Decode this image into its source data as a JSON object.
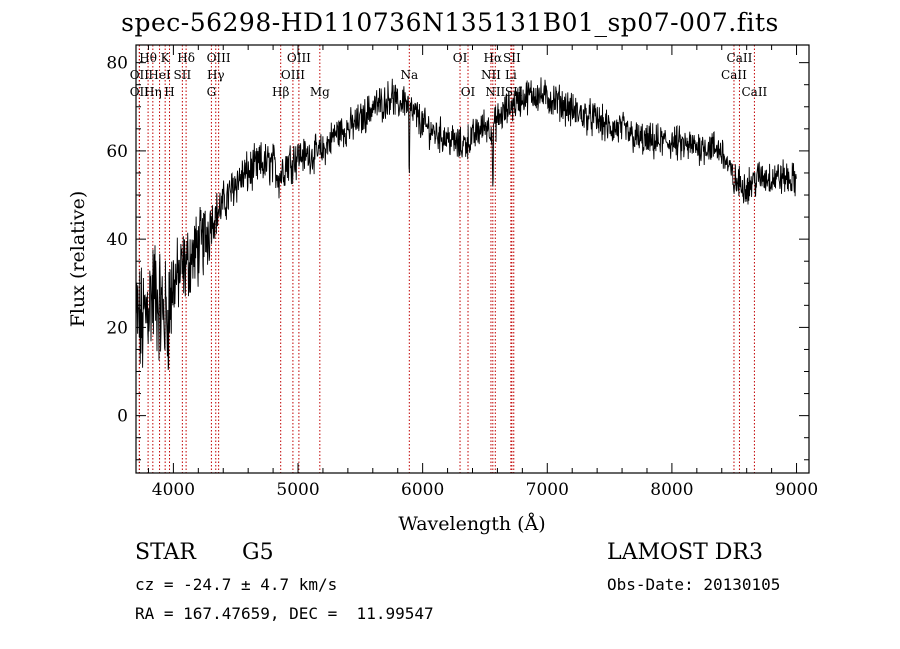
{
  "title": "spec-56298-HD110736N135131B01_sp07-007.fits",
  "info": {
    "class_label": "STAR",
    "subclass": "G5",
    "survey": "LAMOST DR3",
    "cz": "cz = -24.7 ± 4.7 km/s",
    "obs_date": "Obs-Date: 20130105",
    "coords": "RA = 167.47659, DEC =  11.99547"
  },
  "chart_data": {
    "type": "line",
    "title": "spec-56298-HD110736N135131B01_sp07-007.fits",
    "xlabel": "Wavelength (Å)",
    "ylabel": "Flux (relative)",
    "xlim": [
      3700,
      9100
    ],
    "ylim": [
      -13,
      84
    ],
    "x_ticks": [
      4000,
      5000,
      6000,
      7000,
      8000,
      9000
    ],
    "y_ticks": [
      0,
      20,
      40,
      60,
      80
    ],
    "continuum": {
      "x": [
        3700,
        3750,
        3800,
        3850,
        3900,
        3950,
        4000,
        4050,
        4100,
        4150,
        4200,
        4250,
        4300,
        4350,
        4400,
        4450,
        4500,
        4600,
        4700,
        4800,
        4850,
        4900,
        5000,
        5100,
        5200,
        5300,
        5400,
        5500,
        5600,
        5700,
        5750,
        5800,
        5850,
        5900,
        5950,
        6000,
        6100,
        6200,
        6300,
        6400,
        6500,
        6560,
        6600,
        6700,
        6800,
        6900,
        7000,
        7100,
        7200,
        7300,
        7400,
        7500,
        7600,
        7700,
        7800,
        7900,
        8000,
        8100,
        8200,
        8300,
        8400,
        8500,
        8600,
        8700,
        8800,
        8900,
        9000
      ],
      "y": [
        22,
        20,
        26,
        28,
        24,
        22,
        30,
        32,
        34,
        36,
        38,
        40,
        44,
        46,
        48,
        50,
        53,
        55,
        57,
        57,
        54,
        57,
        59,
        59,
        60,
        64,
        65,
        67,
        70,
        71,
        73,
        70,
        72,
        69,
        68,
        66,
        64,
        63,
        61,
        63,
        66,
        65,
        67,
        70,
        72,
        73,
        72,
        71,
        69,
        68,
        67,
        65,
        65,
        63,
        62,
        62,
        62,
        61,
        61,
        61,
        60,
        53,
        52,
        54,
        54,
        54,
        53
      ]
    },
    "noise_amplitude": 3.2,
    "spectral_lines": [
      {
        "label": "Hθ",
        "wavelength": 3797,
        "row": 1
      },
      {
        "label": "OII",
        "wavelength": 3727,
        "row": 2
      },
      {
        "label": "Hη",
        "wavelength": 3835,
        "row": 3
      },
      {
        "label": "OII",
        "wavelength": 3727,
        "row": 3
      },
      {
        "label": "K",
        "wavelength": 3934,
        "row": 1
      },
      {
        "label": "H",
        "wavelength": 3969,
        "row": 3
      },
      {
        "label": "HeI",
        "wavelength": 3889,
        "row": 2
      },
      {
        "label": "SII",
        "wavelength": 4072,
        "row": 2
      },
      {
        "label": "Hδ",
        "wavelength": 4102,
        "row": 1
      },
      {
        "label": "OIII",
        "wavelength": 4363,
        "row": 1
      },
      {
        "label": "Hγ",
        "wavelength": 4340,
        "row": 2
      },
      {
        "label": "G",
        "wavelength": 4305,
        "row": 3
      },
      {
        "label": "Hβ",
        "wavelength": 4861,
        "row": 3
      },
      {
        "label": "OIII",
        "wavelength": 5007,
        "row": 1
      },
      {
        "label": "OIII",
        "wavelength": 4959,
        "row": 2
      },
      {
        "label": "Mg",
        "wavelength": 5175,
        "row": 3
      },
      {
        "label": "Na",
        "wavelength": 5893,
        "row": 2
      },
      {
        "label": "OI",
        "wavelength": 6300,
        "row": 1
      },
      {
        "label": "OI",
        "wavelength": 6364,
        "row": 3
      },
      {
        "label": "Hα",
        "wavelength": 6563,
        "row": 1
      },
      {
        "label": "NII",
        "wavelength": 6548,
        "row": 2
      },
      {
        "label": "NII",
        "wavelength": 6583,
        "row": 3
      },
      {
        "label": "SII",
        "wavelength": 6716,
        "row": 1
      },
      {
        "label": "Li",
        "wavelength": 6708,
        "row": 2
      },
      {
        "label": "SII",
        "wavelength": 6731,
        "row": 3
      },
      {
        "label": "CaII",
        "wavelength": 8542,
        "row": 1
      },
      {
        "label": "CaII",
        "wavelength": 8498,
        "row": 2
      },
      {
        "label": "CaII",
        "wavelength": 8662,
        "row": 3
      }
    ],
    "line_color": "#c00000",
    "spectrum_color": "#000000"
  }
}
